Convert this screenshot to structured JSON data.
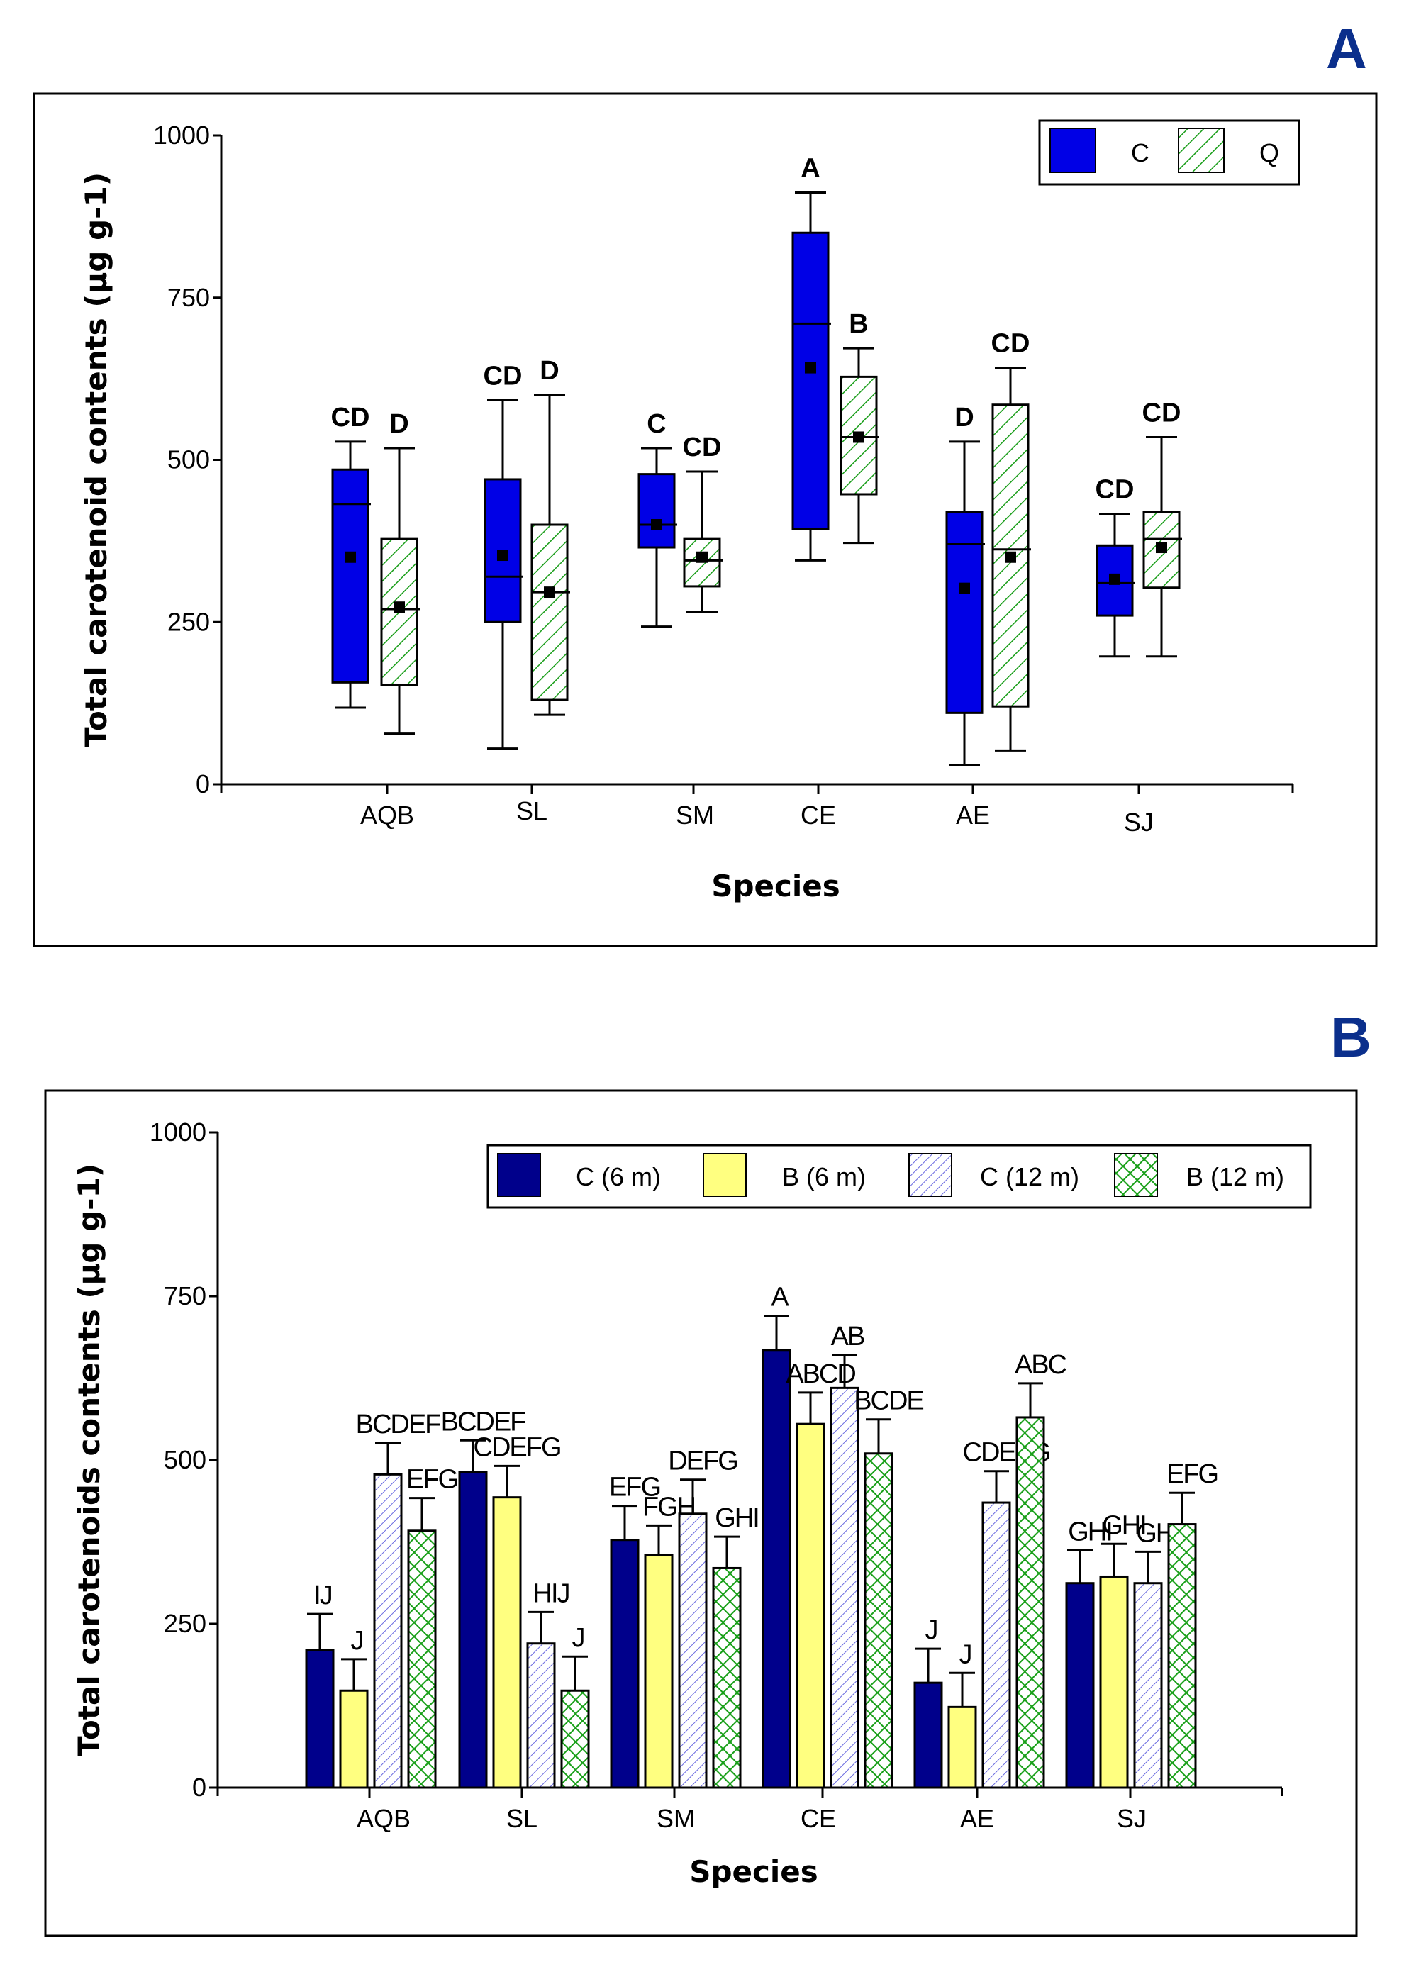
{
  "chart_data": [
    {
      "panel": "A",
      "type": "boxplot",
      "xlabel": "Species",
      "ylabel": "Total carotenoid contents (µg g-1)",
      "ylim": [
        0,
        1000
      ],
      "yticks": [
        0,
        250,
        500,
        750,
        1000
      ],
      "categories": [
        "AQB",
        "SL",
        "SM",
        "CE",
        "AE",
        "SJ"
      ],
      "legend": {
        "position": "top-right",
        "entries": [
          "C",
          "Q"
        ]
      },
      "colors": {
        "C": "#0000e6",
        "Q": "#1a9e1a"
      },
      "series": [
        {
          "name": "C",
          "boxes": [
            {
              "min": 118,
              "q1": 157,
              "median": 432,
              "q3": 485,
              "max": 528,
              "mean": 350,
              "letters": "CD"
            },
            {
              "min": 55,
              "q1": 250,
              "median": 320,
              "q3": 470,
              "max": 592,
              "mean": 353,
              "letters": "CD"
            },
            {
              "min": 243,
              "q1": 365,
              "median": 400,
              "q3": 478,
              "max": 518,
              "mean": 400,
              "letters": "C"
            },
            {
              "min": 345,
              "q1": 393,
              "median": 710,
              "q3": 850,
              "max": 912,
              "mean": 642,
              "letters": "A"
            },
            {
              "min": 30,
              "q1": 110,
              "median": 370,
              "q3": 420,
              "max": 528,
              "mean": 302,
              "letters": "D"
            },
            {
              "min": 197,
              "q1": 260,
              "median": 310,
              "q3": 368,
              "max": 417,
              "mean": 316,
              "letters": "CD"
            }
          ]
        },
        {
          "name": "Q",
          "boxes": [
            {
              "min": 78,
              "q1": 153,
              "median": 270,
              "q3": 378,
              "max": 518,
              "mean": 273,
              "letters": "D"
            },
            {
              "min": 107,
              "q1": 130,
              "median": 296,
              "q3": 400,
              "max": 600,
              "mean": 296,
              "letters": "D"
            },
            {
              "min": 265,
              "q1": 305,
              "median": 345,
              "q3": 378,
              "max": 482,
              "mean": 350,
              "letters": "CD"
            },
            {
              "min": 372,
              "q1": 447,
              "median": 535,
              "q3": 628,
              "max": 672,
              "mean": 535,
              "letters": "B"
            },
            {
              "min": 52,
              "q1": 120,
              "median": 362,
              "q3": 585,
              "max": 642,
              "mean": 350,
              "letters": "CD"
            },
            {
              "min": 197,
              "q1": 303,
              "median": 378,
              "q3": 420,
              "max": 535,
              "mean": 365,
              "letters": "CD"
            }
          ]
        }
      ]
    },
    {
      "panel": "B",
      "type": "bar",
      "xlabel": "Species",
      "ylabel": "Total carotenoids contents (µg g-1)",
      "ylim": [
        0,
        1000
      ],
      "yticks": [
        0,
        250,
        500,
        750,
        1000
      ],
      "categories": [
        "AQB",
        "SL",
        "SM",
        "CE",
        "AE",
        "SJ"
      ],
      "legend": {
        "position": "top-right",
        "entries": [
          "C (6 m)",
          "B (6 m)",
          "C (12 m)",
          "B (12 m)"
        ]
      },
      "colors": {
        "C (6 m)": "#00008b",
        "B (6 m)": "#ffff80",
        "C (12 m)": "#6a6ae0",
        "B (12 m)": "#1aa01a"
      },
      "series": [
        {
          "name": "C (6 m)",
          "values": [
            210,
            482,
            378,
            668,
            160,
            312
          ],
          "errors": [
            55,
            48,
            52,
            52,
            52,
            50
          ],
          "letters": [
            "IJ",
            "BCDEF",
            "EFG",
            "A",
            "J",
            "GHI"
          ]
        },
        {
          "name": "B (6 m)",
          "values": [
            148,
            443,
            355,
            555,
            123,
            322
          ],
          "errors": [
            48,
            48,
            45,
            48,
            52,
            50
          ],
          "letters": [
            "J",
            "CDEFG",
            "FGH",
            "ABCD",
            "J",
            "GHI"
          ]
        },
        {
          "name": "C (12 m)",
          "values": [
            478,
            220,
            418,
            610,
            435,
            312
          ],
          "errors": [
            48,
            48,
            52,
            50,
            48,
            48
          ],
          "letters": [
            "BCDEF",
            "HIJ",
            "DEFG",
            "AB",
            "CDEFG",
            "GHI"
          ]
        },
        {
          "name": "B (12 m)",
          "values": [
            392,
            148,
            335,
            510,
            565,
            402
          ],
          "errors": [
            50,
            52,
            48,
            52,
            52,
            48
          ],
          "letters": [
            "EFG",
            "J",
            "GHI",
            "BCDE",
            "ABC",
            "EFG"
          ]
        }
      ]
    }
  ]
}
